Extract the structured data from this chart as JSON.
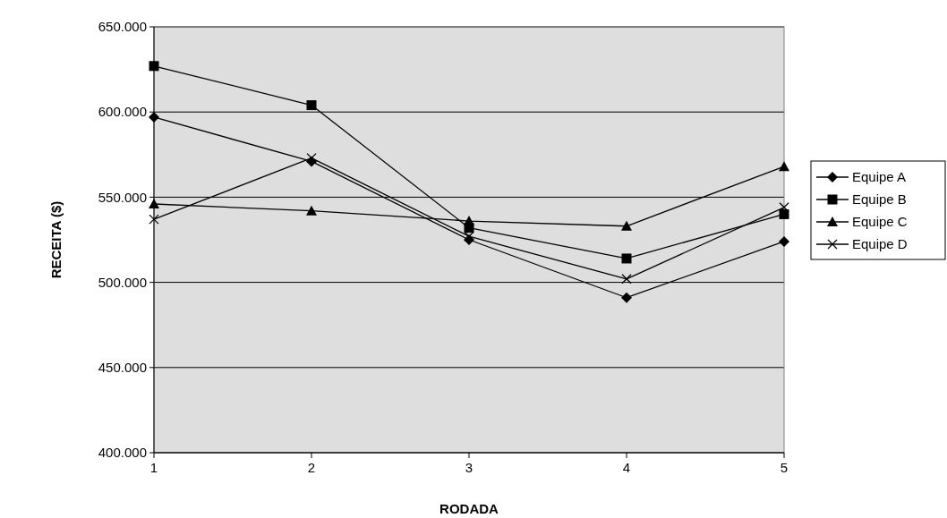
{
  "chart_data": {
    "type": "line",
    "xlabel": "RODADA",
    "ylabel": "RECEITA ($)",
    "x": [
      1,
      2,
      3,
      4,
      5
    ],
    "xlim": [
      1,
      5
    ],
    "xticks": [
      1,
      2,
      3,
      4,
      5
    ],
    "ylim": [
      400000,
      650000
    ],
    "yticks": [
      {
        "value": 400000,
        "label": "400.000"
      },
      {
        "value": 450000,
        "label": "450.000"
      },
      {
        "value": 500000,
        "label": "500.000"
      },
      {
        "value": 550000,
        "label": "550.000"
      },
      {
        "value": 600000,
        "label": "600.000"
      },
      {
        "value": 650000,
        "label": "650.000"
      }
    ],
    "grid": "y",
    "legend": "right",
    "line_style": "solid",
    "series": [
      {
        "name": "Equipe A",
        "color": "#000000",
        "marker": "diamond",
        "values": [
          597000,
          571000,
          525000,
          491000,
          524000
        ]
      },
      {
        "name": "Equipe B",
        "color": "#000000",
        "marker": "square",
        "values": [
          627000,
          604000,
          532000,
          514000,
          540000
        ]
      },
      {
        "name": "Equipe C",
        "color": "#000000",
        "marker": "triangle",
        "values": [
          546000,
          542000,
          536000,
          533000,
          568000
        ]
      },
      {
        "name": "Equipe D",
        "color": "#000000",
        "marker": "cross",
        "values": [
          537000,
          573000,
          527000,
          502000,
          544000
        ]
      }
    ]
  }
}
